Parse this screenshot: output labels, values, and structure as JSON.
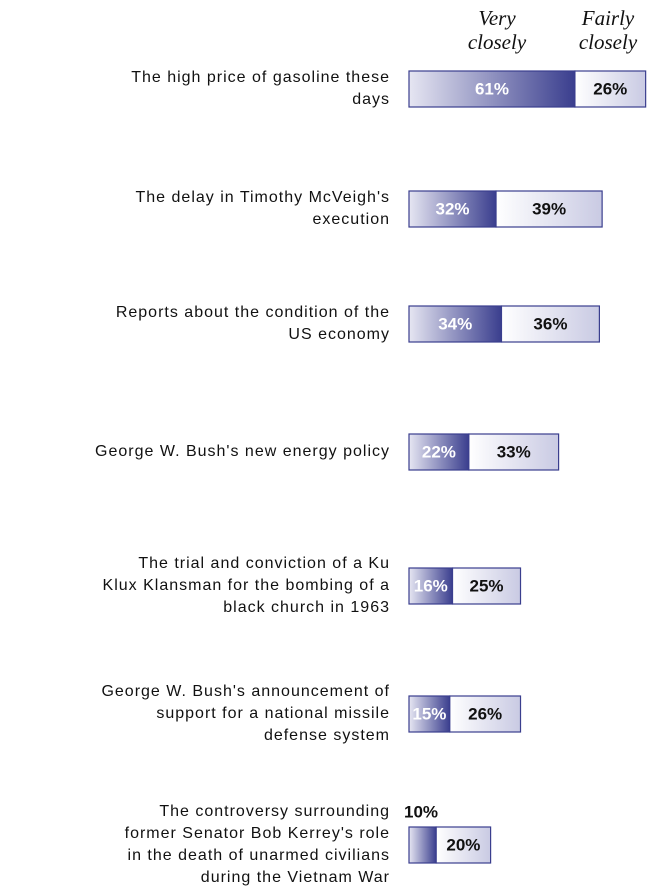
{
  "chart_data": {
    "type": "stacked-bar-horizontal",
    "categories": [
      "The high price of gasoline these\ndays",
      "The delay in Timothy McVeigh's\nexecution",
      "Reports about the condition of the\nUS economy",
      "George W. Bush's new energy policy",
      "The trial and conviction of a Ku\nKlux Klansman for the bombing of a\nblack church in 1963",
      "George W. Bush's announcement of\nsupport for a national missile\ndefense system",
      "The controversy surrounding\nformer Senator Bob Kerrey's role\nin the death of unarmed civilians\nduring the Vietnam War"
    ],
    "series": [
      {
        "name": "Very closely",
        "color": "#3a3e8e",
        "values": [
          61,
          32,
          34,
          22,
          16,
          15,
          10
        ],
        "value_labels": [
          "61%",
          "32%",
          "34%",
          "22%",
          "16%",
          "15%",
          "10%"
        ]
      },
      {
        "name": "Fairly closely",
        "color": "#ffffff",
        "values": [
          26,
          39,
          36,
          33,
          25,
          26,
          20
        ],
        "value_labels": [
          "26%",
          "39%",
          "36%",
          "33%",
          "25%",
          "26%",
          "20%"
        ]
      }
    ]
  }
}
